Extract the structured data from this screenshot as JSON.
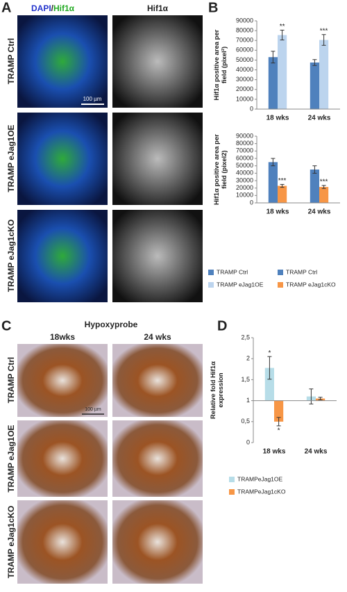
{
  "panels": {
    "A": {
      "label": "A",
      "header": [
        "DAPI",
        "/",
        "Hif1α"
      ],
      "column_header": "Hif1α",
      "rows": [
        "TRAMP Ctrl",
        "TRAMP eJag1OE",
        "TRAMP eJag1cKO"
      ],
      "scale_bar": "100 µm"
    },
    "B": {
      "label": "B"
    },
    "C": {
      "label": "C",
      "title": "Hypoxyprobe",
      "columns": [
        "18wks",
        "24 wks"
      ],
      "rows": [
        "TRAMP Ctrl",
        "TRAMP eJag1OE",
        "TRAMP eJag1cKO"
      ],
      "scale_bar": "100 µm"
    },
    "D": {
      "label": "D"
    }
  },
  "chart_data": [
    {
      "type": "bar",
      "ylabel": [
        "Hif1α positive area per",
        "field (pixel²)"
      ],
      "categories": [
        "18 wks",
        "24 wks"
      ],
      "ylim": [
        0,
        90000
      ],
      "yticks": [
        0,
        10000,
        20000,
        30000,
        40000,
        50000,
        60000,
        70000,
        80000,
        90000
      ],
      "series": [
        {
          "name": "TRAMP Ctrl",
          "color": "#4f81bd",
          "values": [
            53000,
            47500
          ],
          "errors": [
            6000,
            3000
          ],
          "annotations": [
            null,
            null
          ]
        },
        {
          "name": "TRAMP eJag1OE",
          "color": "#bcd4ee",
          "values": [
            75500,
            70500
          ],
          "errors": [
            5000,
            5500
          ],
          "annotations": [
            "**",
            "***"
          ]
        }
      ]
    },
    {
      "type": "bar",
      "ylabel": [
        "Hif1α positive area per",
        "field (pixel2)"
      ],
      "categories": [
        "18 wks",
        "24 wks"
      ],
      "ylim": [
        0,
        90000
      ],
      "yticks": [
        0,
        10000,
        20000,
        30000,
        40000,
        50000,
        60000,
        70000,
        80000,
        90000
      ],
      "series": [
        {
          "name": "TRAMP Ctrl",
          "color": "#4f81bd",
          "values": [
            55000,
            45000
          ],
          "errors": [
            5000,
            5000
          ],
          "annotations": [
            null,
            null
          ]
        },
        {
          "name": "TRAMP eJag1cKO",
          "color": "#f79646",
          "values": [
            23000,
            21500
          ],
          "errors": [
            2000,
            2000
          ],
          "annotations": [
            "***",
            "***"
          ]
        }
      ]
    },
    {
      "type": "bar",
      "ylabel": [
        "Relative fold Hif1α",
        "expression"
      ],
      "categories": [
        "18 wks",
        "24 wks"
      ],
      "bar_base": 1,
      "ylim": [
        0,
        2.5
      ],
      "yticks": [
        0,
        {
          "value": 0.5,
          "label": "0,5"
        },
        1,
        {
          "value": 1.5,
          "label": "1,5"
        },
        2,
        {
          "value": 2.5,
          "label": "2,5"
        }
      ],
      "series": [
        {
          "name": "TRAMPeJag1OE",
          "color": "#b7dde8",
          "values": [
            1.78,
            1.1
          ],
          "errors": [
            0.27,
            0.18
          ],
          "annotations": [
            "*",
            null
          ]
        },
        {
          "name": "TRAMPeJag1cKO",
          "color": "#f79646",
          "values": [
            0.5,
            1.05
          ],
          "errors": [
            0.1,
            0.03
          ],
          "annotations": [
            "*",
            null
          ]
        }
      ]
    }
  ]
}
